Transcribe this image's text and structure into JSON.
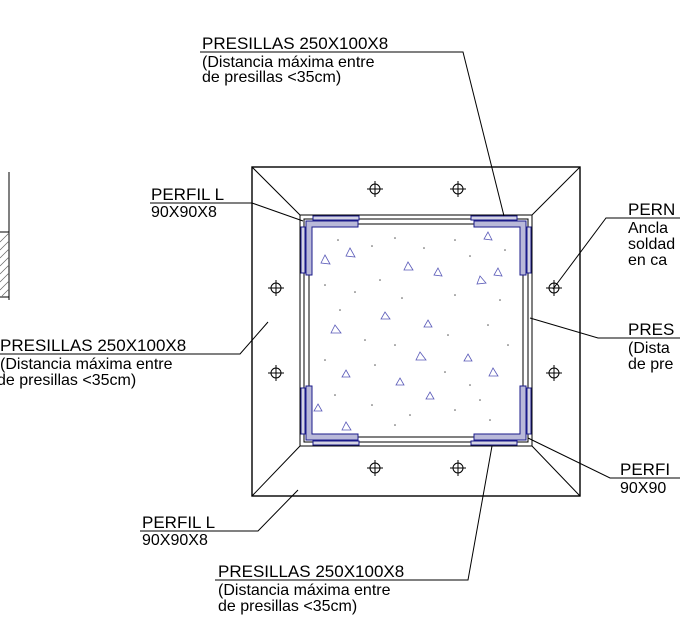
{
  "labels": {
    "top": {
      "title": "PRESILLAS 250X100X8",
      "line1": "(Distancia máxima entre",
      "line2": "de presillas <35cm)"
    },
    "left_perfil": {
      "title": "PERFIL L",
      "size": "90X90X8"
    },
    "left_presillas": {
      "title": "PRESILLAS 250X100X8",
      "line1": "(Distancia máxima entre",
      "line2": "de presillas <35cm)"
    },
    "bottom_perfil": {
      "title": "PERFIL L",
      "size": "90X90X8"
    },
    "bottom": {
      "title": "PRESILLAS 250X100X8",
      "line1": "(Distancia máxima entre",
      "line2": "de presillas <35cm)"
    },
    "right_perno": {
      "title": "PERN",
      "line1": "Ancla",
      "line2": "soldad",
      "line3": "en ca"
    },
    "right_presillas": {
      "title": "PRES",
      "line1": "(Dista",
      "line2": "de pre"
    },
    "right_perfil": {
      "title": "PERFI",
      "size": "90X90"
    }
  },
  "colors": {
    "line": "#000000",
    "steel_fill": "#b9b9d9",
    "steel_stroke": "#1a1a8a",
    "concrete_marks": "#5a5ab8"
  },
  "icons": [
    "anchor-bolt-icon"
  ]
}
